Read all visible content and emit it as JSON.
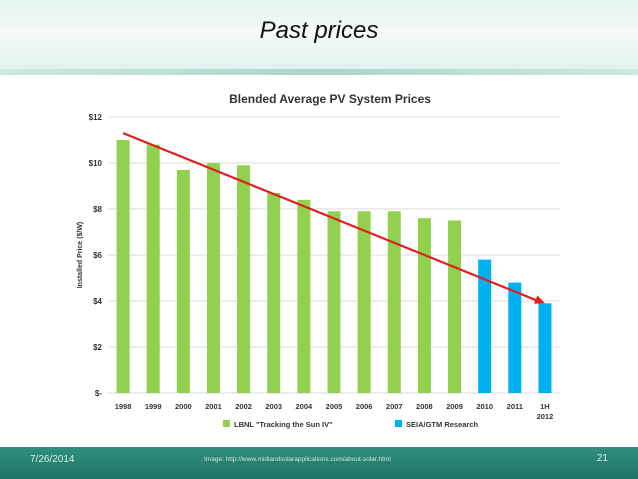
{
  "slide": {
    "title": "Past prices",
    "date": "7/26/2014",
    "credit": "Image: http://www.midlandsolarapplications.com/about-solar.html",
    "page_number": "21"
  },
  "chart_data": {
    "type": "bar",
    "title": "Blended Average PV System Prices",
    "ylabel": "Installed Price ($/W)",
    "xlabel": "",
    "ylim": [
      0,
      12
    ],
    "yticks": [
      "$-",
      "$2",
      "$4",
      "$6",
      "$8",
      "$10",
      "$12"
    ],
    "categories": [
      "1998",
      "1999",
      "2000",
      "2001",
      "2002",
      "2003",
      "2004",
      "2005",
      "2006",
      "2007",
      "2008",
      "2009",
      "2010",
      "2011",
      "1H 2012"
    ],
    "values": [
      11.0,
      10.8,
      9.7,
      10.0,
      9.9,
      8.7,
      8.4,
      7.9,
      7.9,
      7.9,
      7.6,
      7.5,
      5.8,
      4.8,
      3.9
    ],
    "series": [
      {
        "name": "LBNL \"Tracking the Sun IV\"",
        "color": "#92d050",
        "range": [
          0,
          11
        ]
      },
      {
        "name": "SEIA/GTM Research",
        "color": "#00b0f0",
        "range": [
          12,
          14
        ]
      }
    ],
    "trend_arrow": {
      "from": [
        0,
        11.3
      ],
      "to": [
        14,
        3.9
      ],
      "color": "#e02020"
    },
    "grid": true,
    "legend_position": "bottom"
  }
}
